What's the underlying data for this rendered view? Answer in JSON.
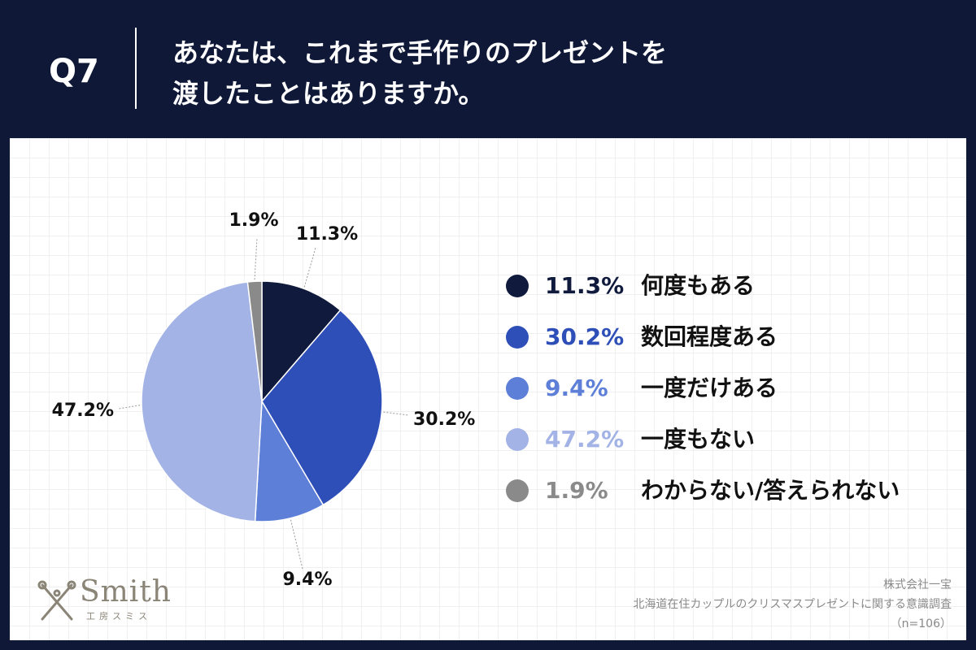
{
  "header": {
    "question_number": "Q7",
    "title_line1": "あなたは、これまで手作りのプレゼントを",
    "title_line2": "渡したことはありますか。"
  },
  "chart_data": {
    "type": "pie",
    "title": "あなたは、これまで手作りのプレゼントを渡したことはありますか。",
    "unit": "%",
    "slices": [
      {
        "label": "何度もある",
        "value": 11.3,
        "display": "11.3%",
        "color": "#101a3c"
      },
      {
        "label": "数回程度ある",
        "value": 30.2,
        "display": "30.2%",
        "color": "#2f4fb8"
      },
      {
        "label": "一度だけある",
        "value": 9.4,
        "display": "9.4%",
        "color": "#5d7fd8"
      },
      {
        "label": "一度もない",
        "value": 47.2,
        "display": "47.2%",
        "color": "#a3b3e6"
      },
      {
        "label": "わからない/答えられない",
        "value": 1.9,
        "display": "1.9%",
        "color": "#8a8a8a"
      }
    ],
    "legend_position": "right",
    "start": "top, clockwise"
  },
  "logo": {
    "wordmark": "Smith",
    "subtitle": "工房スミス"
  },
  "source": {
    "company": "株式会社一宝",
    "survey": "北海道在住カップルのクリスマスプレゼントに関する意識調査",
    "sample": "（n=106）"
  }
}
